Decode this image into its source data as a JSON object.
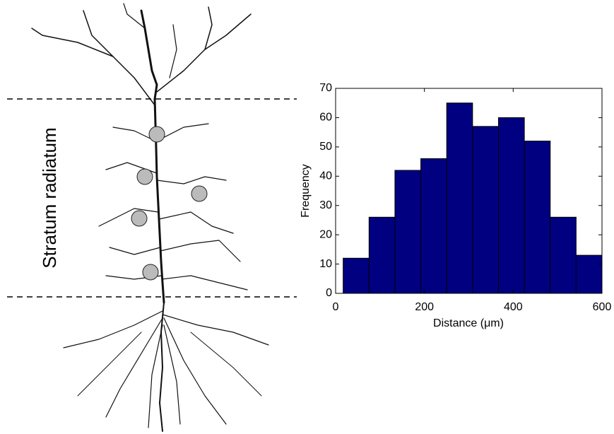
{
  "panel": {
    "label": "Stratum radiatum"
  },
  "chart_data": {
    "type": "histogram",
    "x_label": "Distance (μm)",
    "y_label": "Frequency",
    "bins": [
      17,
      75.3,
      133.6,
      191.9,
      250.2,
      308.5,
      366.8,
      425.1,
      483.4,
      541.7,
      600
    ],
    "counts": [
      12,
      26,
      42,
      46,
      65,
      57,
      60,
      52,
      26,
      13
    ],
    "color": "#000080",
    "xlim": [
      0,
      600
    ],
    "xticks": [
      0,
      200,
      400,
      600
    ],
    "ylim": [
      0,
      70
    ],
    "yticks": [
      0,
      10,
      20,
      30,
      40,
      50,
      60,
      70
    ]
  }
}
